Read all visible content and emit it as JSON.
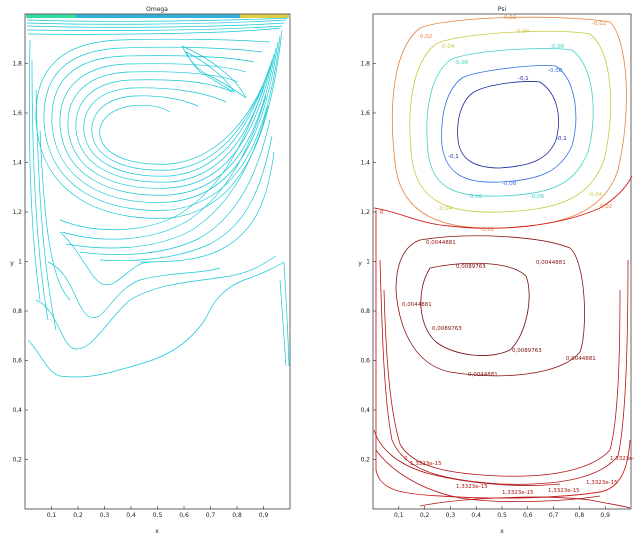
{
  "chart_data": [
    {
      "type": "contour",
      "title": "Omega",
      "xlabel": "x",
      "ylabel": "y",
      "xlim": [
        0,
        1
      ],
      "ylim": [
        0,
        2
      ],
      "x_ticks": [
        "0,1",
        "0,2",
        "0,3",
        "0,4",
        "0,5",
        "0,6",
        "0,7",
        "0,8",
        "0,9"
      ],
      "y_ticks": [
        "0,2",
        "0,4",
        "0,6",
        "0,8",
        "1",
        "1,2",
        "1,4",
        "1,6",
        "1,8"
      ],
      "grid": false,
      "colormap": "jet",
      "level_color": "#12c8d6",
      "wall_gradient": [
        "#1f5fd0",
        "#16b4e0",
        "#5fe0a0",
        "#d8e060"
      ]
    },
    {
      "type": "contour",
      "title": "Psi",
      "xlabel": "x",
      "ylabel": "y",
      "xlim": [
        0,
        1
      ],
      "ylim": [
        0,
        2
      ],
      "x_ticks": [
        "0,1",
        "0,2",
        "0,3",
        "0,4",
        "0,5",
        "0,6",
        "0,7",
        "0,8",
        "0,9"
      ],
      "y_ticks": [
        "0,2",
        "0,4",
        "0,6",
        "0,8",
        "1",
        "1,2",
        "1,4",
        "1,6",
        "1,8"
      ],
      "grid": false,
      "levels": [
        {
          "value": -0.02,
          "color": "#e8823a",
          "labels": [
            "-0,02",
            "-0,02",
            "-0,02",
            "-0,02",
            "-0,02"
          ]
        },
        {
          "value": -0.04,
          "color": "#c8c840",
          "labels": [
            "-0,04",
            "-0,04",
            "-0,04",
            "-0,04"
          ]
        },
        {
          "value": -0.06,
          "color": "#40d0c8",
          "labels": [
            "-0,06",
            "-0,06",
            "-0,06",
            "-0,06"
          ]
        },
        {
          "value": -0.08,
          "color": "#3070e0",
          "labels": [
            "-0,08",
            "-0,08"
          ]
        },
        {
          "value": -0.1,
          "color": "#1a2a9a",
          "labels": [
            "-0,1",
            "-0,1",
            "-0,1"
          ]
        },
        {
          "value": 0,
          "color": "#d02020",
          "labels": [
            "0",
            "0"
          ]
        },
        {
          "value": 0.0044881,
          "color": "#8a1010",
          "labels": [
            "0,0044881",
            "0,0044881",
            "0,0044881",
            "0,0044881",
            "0,0044881"
          ]
        },
        {
          "value": 0.0089763,
          "color": "#7a0808",
          "labels": [
            "0,0089763",
            "0,0089763",
            "0,0089763"
          ]
        },
        {
          "value": 1.3323e-15,
          "color": "#b01515",
          "labels": [
            "1,3323e-15",
            "1,3323e-15",
            "1,3323e-15",
            "1,3323e-15",
            "1,3323e-15",
            "1,3323e-15"
          ]
        }
      ]
    }
  ]
}
